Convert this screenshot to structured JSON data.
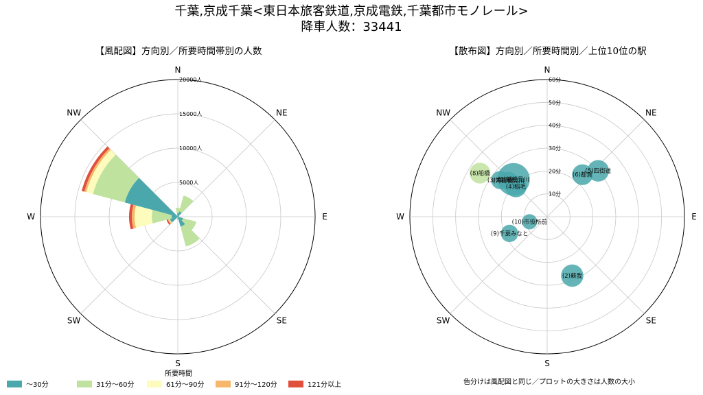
{
  "header": {
    "title_line1": "千葉,京成千葉<東日本旅客鉄道,京成電鉄,千葉都市モノレール>",
    "title_line2": "降車人数：33441"
  },
  "wind_panel": {
    "subtitle": "【風配図】方向別／所要時間帯別の人数",
    "compass": [
      "N",
      "NE",
      "E",
      "SE",
      "S",
      "SW",
      "W",
      "NW"
    ],
    "radial_ticks": [
      "5000人",
      "10000人",
      "15000人",
      "20000人"
    ]
  },
  "scatter_panel": {
    "subtitle": "【散布図】方向別／所要時間別／上位10位の駅",
    "compass": [
      "N",
      "NE",
      "E",
      "SE",
      "S",
      "SW",
      "W",
      "NW"
    ],
    "radial_ticks": [
      "10分",
      "20分",
      "30分",
      "40分",
      "50分",
      "60分"
    ],
    "note": "色分けは風配図と同じ／プロットの大きさは人数の大小"
  },
  "legend": {
    "title": "所要時間",
    "items": [
      {
        "label": "〜30分",
        "color": "#4aa8ac"
      },
      {
        "label": "31分〜60分",
        "color": "#bfe39e"
      },
      {
        "label": "61分〜90分",
        "color": "#fdfcbc"
      },
      {
        "label": "91分〜120分",
        "color": "#f6b76a"
      },
      {
        "label": "121分以上",
        "color": "#e0503c"
      }
    ]
  },
  "chart_data": [
    {
      "type": "polar_stacked_bar",
      "title": "【風配図】方向別／所要時間帯別の人数",
      "rlim": [
        0,
        20000
      ],
      "r_unit": "人",
      "categories": [
        "~30",
        "31-60",
        "61-90",
        "91-120",
        "121+"
      ],
      "bars": [
        {
          "direction": "N",
          "values": [
            500,
            800,
            0,
            0,
            0
          ]
        },
        {
          "direction": "NNE",
          "values": [
            800,
            2400,
            0,
            0,
            0
          ]
        },
        {
          "direction": "ENE",
          "values": [
            200,
            0,
            0,
            0,
            0
          ]
        },
        {
          "direction": "ESE",
          "values": [
            800,
            2000,
            0,
            0,
            0
          ]
        },
        {
          "direction": "SSE",
          "values": [
            1500,
            3000,
            0,
            0,
            0
          ]
        },
        {
          "direction": "S",
          "values": [
            300,
            200,
            0,
            0,
            0
          ]
        },
        {
          "direction": "SW",
          "values": [
            300,
            500,
            500,
            200,
            200
          ]
        },
        {
          "direction": "WSW",
          "values": [
            1200,
            0,
            0,
            0,
            0
          ]
        },
        {
          "direction": "W",
          "values": [
            900,
            2900,
            2500,
            400,
            400
          ]
        },
        {
          "direction": "WNW",
          "values": [
            1200,
            0,
            0,
            0,
            0
          ]
        },
        {
          "direction": "NW",
          "values": [
            8000,
            4800,
            1000,
            300,
            400
          ]
        },
        {
          "direction": "NNW",
          "values": [
            200,
            0,
            0,
            0,
            0
          ]
        }
      ]
    },
    {
      "type": "polar_scatter",
      "title": "【散布図】方向別／所要時間別／上位10位の駅",
      "rlim": [
        0,
        60
      ],
      "r_unit": "分",
      "points": [
        {
          "label": "(1)新検見川",
          "bearing": 318,
          "minutes": 22,
          "size": 3200,
          "band": "~30"
        },
        {
          "label": "(2)蘇我",
          "bearing": 157,
          "minutes": 28,
          "size": 1500,
          "band": "~30"
        },
        {
          "label": "(3)津田沼",
          "bearing": 308,
          "minutes": 26,
          "size": 1000,
          "band": "~30"
        },
        {
          "label": "(4)稲毛",
          "bearing": 314,
          "minutes": 19,
          "size": 1400,
          "band": "~30"
        },
        {
          "label": "(5)四街道",
          "bearing": 48,
          "minutes": 30,
          "size": 1400,
          "band": "~30"
        },
        {
          "label": "(6)都賀",
          "bearing": 40,
          "minutes": 24,
          "size": 1300,
          "band": "~30"
        },
        {
          "label": "(7)新検見川",
          "bearing": 313,
          "minutes": 23,
          "size": 1000,
          "band": "~30"
        },
        {
          "label": "(8)船橋",
          "bearing": 303,
          "minutes": 35,
          "size": 1300,
          "band": "31-60"
        },
        {
          "label": "(9)千葉みなと",
          "bearing": 246,
          "minutes": 18,
          "size": 900,
          "band": "~30"
        },
        {
          "label": "(10)市役所前",
          "bearing": 254,
          "minutes": 8,
          "size": 700,
          "band": "~30"
        }
      ]
    }
  ]
}
